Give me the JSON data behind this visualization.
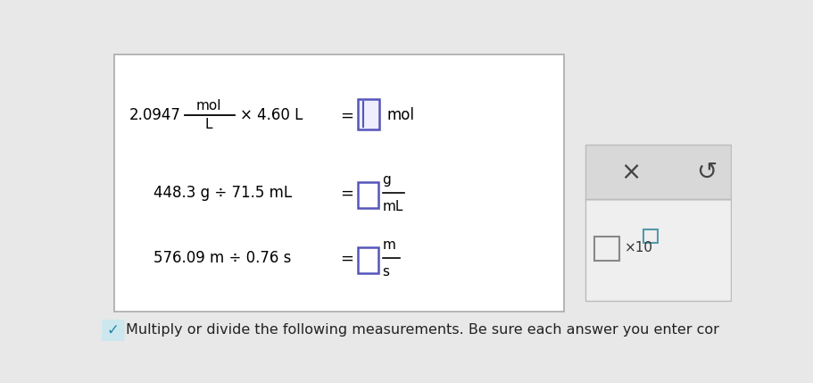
{
  "title": "Multiply or divide the following measurements. Be sure each answer you enter cor",
  "bg_color": "#e8e8e8",
  "main_box_bg": "#ffffff",
  "main_box_border": "#aaaaaa",
  "input_box_color": "#5555bb",
  "input_box_fill": "#ffffff",
  "input_box1_fill": "#eeeeff",
  "checkmark_color": "#3399aa",
  "row1_left": "2.0947",
  "row1_unit_top": "mol",
  "row1_unit_bot": "L",
  "row1_mid": "× 4.60 L",
  "row1_eq": "=",
  "row1_unit_ans": "mol",
  "row2_left": "448.3 g ÷ 71.5 mL",
  "row2_eq": "=",
  "row2_unit_top": "g",
  "row2_unit_bot": "mL",
  "row3_left": "576.09 m ÷ 0.76 s",
  "row3_eq": "=",
  "row3_unit_top": "m",
  "row3_unit_bot": "s",
  "right_panel_top_bg": "#f0f0f0",
  "right_panel_bot_bg": "#d8d8d8",
  "right_box_border": "#aaaaaa",
  "large_box_color": "#888888",
  "small_box_color": "#5599aa",
  "x_color": "#333333",
  "undo_color": "#333333"
}
